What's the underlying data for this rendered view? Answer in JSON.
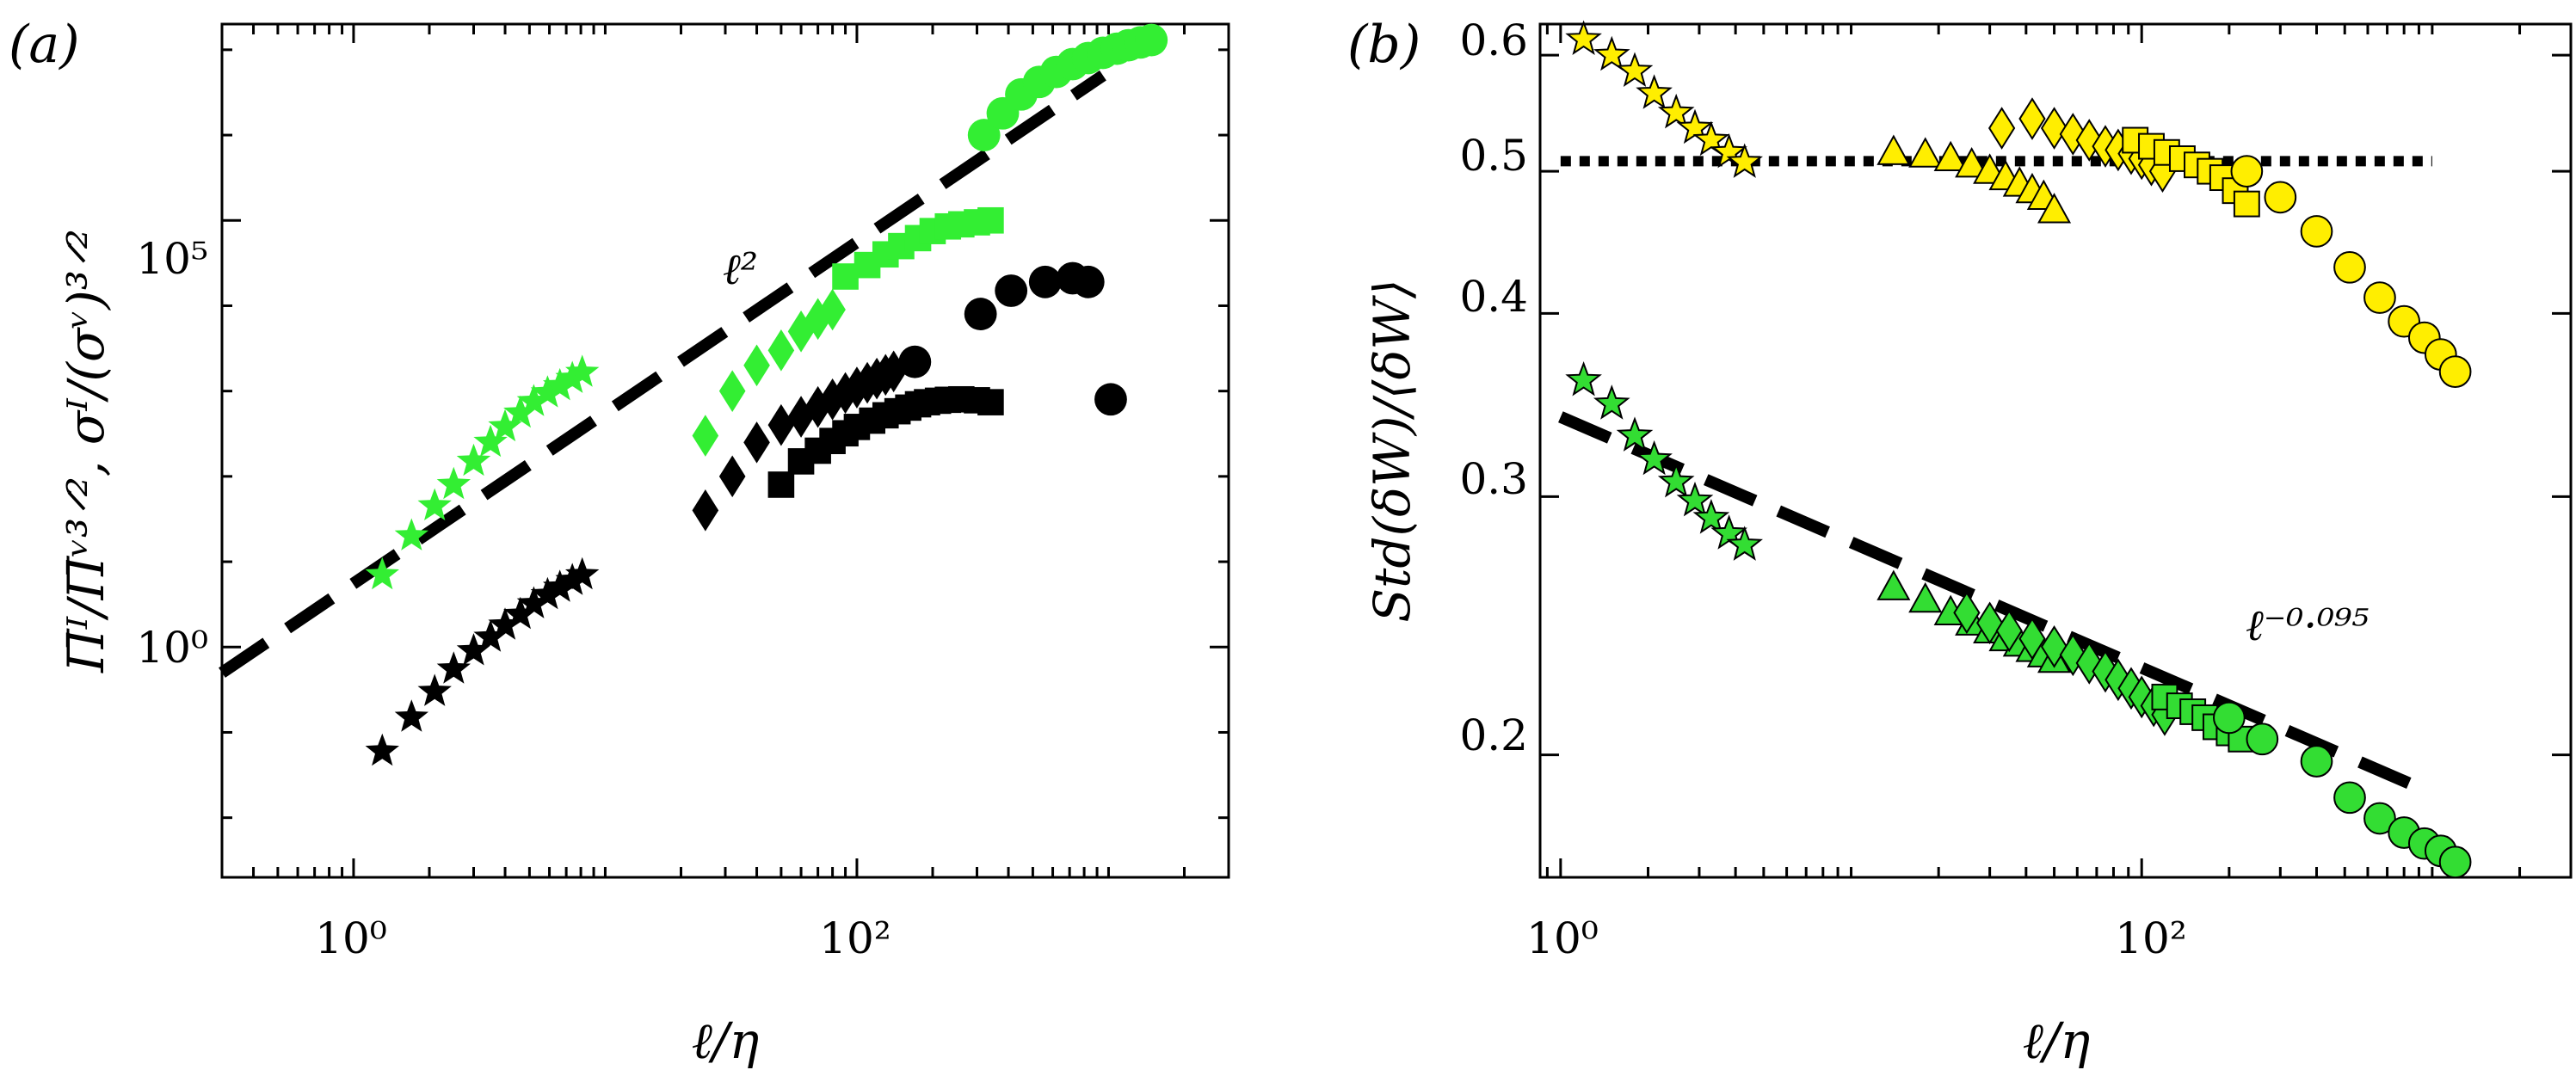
{
  "chart_data": [
    {
      "type": "scatter",
      "panel_label": "(a)",
      "xlabel": "ℓ/η",
      "ylabel": "Π̄ᴵ/Π̄ᵛ³ᐟ², σᴵ/(σᵛ)³ᐟ²",
      "xscale": "log",
      "yscale": "log",
      "xlim": [
        0.3,
        3000
      ],
      "ylim": [
        0.002,
        20000000
      ],
      "xticks": [
        1,
        100
      ],
      "xtick_labels": [
        "10⁰",
        "10²"
      ],
      "yticks": [
        1,
        100000
      ],
      "ytick_labels": [
        "10⁰",
        "10⁵"
      ],
      "annotations": [
        {
          "text": "ℓ²",
          "x": 27,
          "y": 3000
        }
      ],
      "colors": {
        "green": "#33ee33",
        "black": "#000000"
      },
      "series": [
        {
          "marker": "star",
          "color": "green",
          "x": [
            1.3,
            1.7,
            2.1,
            2.5,
            3.0,
            3.5,
            4.0,
            4.6,
            5.2,
            5.9,
            6.6,
            7.4,
            8.1
          ],
          "y": [
            7,
            20,
            45,
            80,
            150,
            250,
            380,
            550,
            750,
            950,
            1150,
            1400,
            1650
          ]
        },
        {
          "marker": "star",
          "color": "black",
          "x": [
            1.3,
            1.7,
            2.1,
            2.5,
            3.0,
            3.5,
            4.0,
            4.6,
            5.2,
            5.9,
            6.6,
            7.4,
            8.1
          ],
          "y": [
            0.06,
            0.15,
            0.3,
            0.55,
            0.9,
            1.3,
            1.8,
            2.4,
            3.2,
            4.1,
            5.0,
            6.0,
            7.0
          ]
        },
        {
          "marker": "diamond",
          "color": "green",
          "x": [
            25,
            32,
            40,
            50,
            60,
            70,
            80
          ],
          "y": [
            300,
            1000,
            2000,
            3000,
            5000,
            7000,
            9000
          ]
        },
        {
          "marker": "diamond",
          "color": "black",
          "x": [
            25,
            32,
            40,
            50,
            60,
            70,
            80,
            90,
            100,
            110,
            120,
            130,
            140
          ],
          "y": [
            40,
            100,
            250,
            400,
            500,
            650,
            800,
            950,
            1100,
            1250,
            1400,
            1550,
            1700
          ]
        },
        {
          "marker": "square",
          "color": "green",
          "x": [
            90,
            110,
            130,
            150,
            175,
            200,
            230,
            260,
            300,
            340
          ],
          "y": [
            22000,
            30000,
            40000,
            50000,
            62000,
            75000,
            85000,
            90000,
            95000,
            100000
          ]
        },
        {
          "marker": "square",
          "color": "black",
          "x": [
            50,
            60,
            70,
            80,
            90,
            100,
            115,
            130,
            145,
            160,
            175,
            190,
            210,
            230,
            260,
            300,
            340
          ],
          "y": [
            80,
            150,
            200,
            260,
            320,
            380,
            450,
            520,
            580,
            640,
            700,
            740,
            770,
            790,
            800,
            780,
            740
          ]
        },
        {
          "marker": "circle",
          "color": "green",
          "x": [
            320,
            380,
            450,
            530,
            620,
            720,
            830,
            950,
            1080,
            1200,
            1340,
            1480
          ],
          "y": [
            1000000,
            1800000,
            3000000,
            4200000,
            5500000,
            6800000,
            8000000,
            9200000,
            10300000,
            11300000,
            12200000,
            13000000
          ]
        },
        {
          "marker": "circle",
          "color": "black",
          "x": [
            170,
            310,
            410,
            560,
            720,
            830,
            1020
          ],
          "y": [
            2200,
            8000,
            15000,
            19000,
            21000,
            19000,
            800
          ]
        }
      ],
      "reference_lines": [
        {
          "label": "ℓ²",
          "style": "dashed",
          "color": "black",
          "x": [
            0.3,
            950
          ],
          "y": [
            0.5,
            5000000
          ]
        }
      ]
    },
    {
      "type": "scatter",
      "panel_label": "(b)",
      "xlabel": "ℓ/η",
      "ylabel": "Std(δW)/⟨δW⟩",
      "xscale": "log",
      "yscale": "log",
      "xlim": [
        0.85,
        3000
      ],
      "ylim": [
        0.165,
        0.63
      ],
      "xticks": [
        1,
        100
      ],
      "xtick_labels": [
        "10⁰",
        "10²"
      ],
      "yticks": [
        0.2,
        0.3,
        0.4,
        0.5,
        0.6
      ],
      "ytick_labels": [
        "0.2",
        "0.3",
        "0.4",
        "0.5",
        "0.6"
      ],
      "annotations": [
        {
          "text": "ℓ⁻⁰·⁰⁹⁵",
          "x": 230,
          "y": 0.235
        }
      ],
      "colors": {
        "yellow": "#ffee00",
        "green": "#33dd33"
      },
      "series": [
        {
          "marker": "star",
          "color": "yellow",
          "x": [
            1.2,
            1.5,
            1.8,
            2.1,
            2.5,
            2.9,
            3.3,
            3.8,
            4.3
          ],
          "y": [
            0.615,
            0.6,
            0.585,
            0.565,
            0.548,
            0.535,
            0.525,
            0.515,
            0.507
          ]
        },
        {
          "marker": "triangle",
          "color": "yellow",
          "x": [
            14,
            18,
            22,
            26,
            30,
            34,
            38,
            42,
            46,
            50
          ],
          "y": [
            0.515,
            0.513,
            0.51,
            0.505,
            0.5,
            0.495,
            0.49,
            0.485,
            0.48,
            0.47
          ]
        },
        {
          "marker": "diamond",
          "color": "yellow",
          "x": [
            33,
            42,
            50,
            58,
            66,
            75,
            83,
            92,
            100,
            108,
            118
          ],
          "y": [
            0.535,
            0.543,
            0.535,
            0.53,
            0.525,
            0.52,
            0.517,
            0.514,
            0.51,
            0.505,
            0.5
          ]
        },
        {
          "marker": "square",
          "color": "yellow",
          "x": [
            95,
            108,
            122,
            138,
            155,
            172,
            190,
            210,
            230
          ],
          "y": [
            0.525,
            0.52,
            0.515,
            0.51,
            0.505,
            0.5,
            0.495,
            0.485,
            0.475
          ]
        },
        {
          "marker": "circle",
          "color": "yellow",
          "x": [
            230,
            300,
            400,
            520,
            660,
            800,
            940,
            1070,
            1200
          ],
          "y": [
            0.5,
            0.48,
            0.455,
            0.43,
            0.41,
            0.395,
            0.385,
            0.375,
            0.365
          ]
        },
        {
          "marker": "star",
          "color": "green",
          "x": [
            1.2,
            1.5,
            1.8,
            2.1,
            2.5,
            2.9,
            3.3,
            3.8,
            4.3
          ],
          "y": [
            0.36,
            0.347,
            0.33,
            0.318,
            0.307,
            0.298,
            0.29,
            0.283,
            0.278
          ]
        },
        {
          "marker": "triangle",
          "color": "green",
          "x": [
            14,
            18,
            22,
            26,
            30,
            34,
            38,
            42,
            46,
            50
          ],
          "y": [
            0.26,
            0.255,
            0.25,
            0.246,
            0.243,
            0.24,
            0.238,
            0.236,
            0.234,
            0.232
          ]
        },
        {
          "marker": "diamond",
          "color": "green",
          "x": [
            25,
            30,
            35,
            42,
            50,
            58,
            66,
            75,
            83,
            92,
            100,
            110,
            120
          ],
          "y": [
            0.25,
            0.246,
            0.243,
            0.24,
            0.237,
            0.234,
            0.231,
            0.228,
            0.225,
            0.222,
            0.219,
            0.216,
            0.213
          ]
        },
        {
          "marker": "square",
          "color": "green",
          "x": [
            120,
            135,
            150,
            165,
            180,
            200,
            220
          ],
          "y": [
            0.219,
            0.216,
            0.214,
            0.212,
            0.209,
            0.207,
            0.205
          ]
        },
        {
          "marker": "circle",
          "color": "green",
          "x": [
            200,
            260,
            400,
            520,
            660,
            800,
            940,
            1070,
            1200
          ],
          "y": [
            0.212,
            0.205,
            0.198,
            0.187,
            0.181,
            0.177,
            0.174,
            0.172,
            0.169
          ]
        }
      ],
      "reference_lines": [
        {
          "label": "0.5",
          "style": "dotted",
          "color": "black",
          "x": [
            1.0,
            1000
          ],
          "y": [
            0.508,
            0.508
          ]
        },
        {
          "label": "ℓ⁻⁰·⁰⁹⁵",
          "style": "dashed",
          "color": "black",
          "x": [
            1.0,
            900
          ],
          "y": [
            0.34,
            0.19
          ]
        }
      ]
    }
  ]
}
